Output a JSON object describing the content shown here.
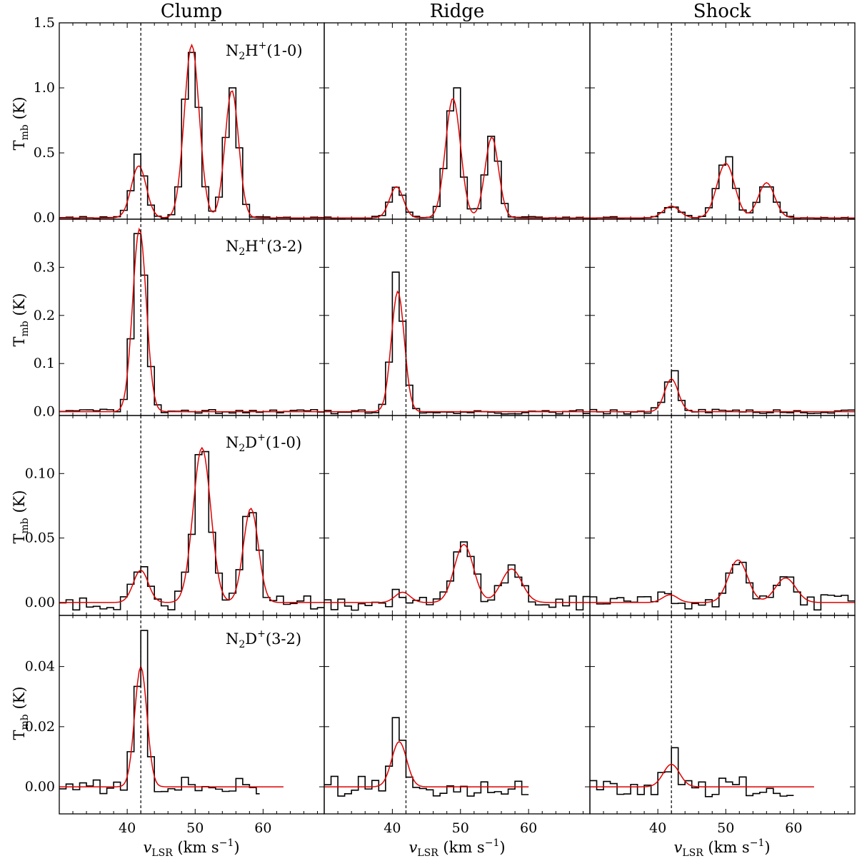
{
  "chart_data": {
    "type": "line",
    "columns": [
      "Clump",
      "Ridge",
      "Shock"
    ],
    "row_labels": [
      "N2H+(1-0)",
      "N2H+(3-2)",
      "N2D+(1-0)",
      "N2D+(3-2)"
    ],
    "xlabel": "vLSR (km s−1)",
    "ylabel": "Tmb (K)",
    "xlim": [
      30,
      69
    ],
    "x_ticks": [
      40,
      50,
      60
    ],
    "vlsr_lines": [
      42.0,
      42.0,
      42.0
    ],
    "rows": [
      {
        "ylim": [
          -0.01,
          1.5
        ],
        "y_ticks": [
          0.0,
          0.5,
          1.0,
          1.5
        ],
        "y_tick_labels": [
          "0.0",
          "0.5",
          "1.0",
          "1.5"
        ],
        "panels": [
          {
            "components": [
              [
                41.7,
                0.4,
                1.1
              ],
              [
                49.5,
                1.33,
                1.1
              ],
              [
                55.4,
                0.98,
                1.0
              ]
            ],
            "noise": 0.01,
            "x_end": 69,
            "spike": [
              41.9,
              0.49
            ]
          },
          {
            "components": [
              [
                40.6,
                0.24,
                1.0
              ],
              [
                48.9,
                0.92,
                1.1
              ],
              [
                54.6,
                0.62,
                1.0
              ]
            ],
            "noise": 0.01,
            "x_end": 69,
            "spike": [
              49.4,
              1.0
            ]
          },
          {
            "components": [
              [
                42.0,
                0.09,
                1.2
              ],
              [
                50.0,
                0.42,
                1.3
              ],
              [
                56.0,
                0.27,
                1.2
              ]
            ],
            "noise": 0.01,
            "x_end": 69,
            "spike": [
              50.4,
              0.47
            ]
          }
        ]
      },
      {
        "ylim": [
          -0.008,
          0.4
        ],
        "y_ticks": [
          0.0,
          0.1,
          0.2,
          0.3
        ],
        "y_tick_labels": [
          "0.0",
          "0.1",
          "0.2",
          "0.3"
        ],
        "panels": [
          {
            "components": [
              [
                41.8,
                0.38,
                1.0
              ]
            ],
            "noise": 0.005,
            "x_end": 69,
            "spike": [
              41.6,
              0.37
            ]
          },
          {
            "components": [
              [
                40.8,
                0.25,
                0.95
              ]
            ],
            "noise": 0.005,
            "x_end": 69,
            "spike": [
              40.8,
              0.29
            ]
          },
          {
            "components": [
              [
                42.0,
                0.068,
                1.0
              ]
            ],
            "noise": 0.005,
            "x_end": 69,
            "spike": [
              42.2,
              0.085
            ]
          }
        ]
      },
      {
        "ylim": [
          -0.01,
          0.145
        ],
        "y_ticks": [
          0.0,
          0.05,
          0.1
        ],
        "y_tick_labels": [
          "0.00",
          "0.05",
          "0.10"
        ],
        "panels": [
          {
            "components": [
              [
                42.0,
                0.025,
                1.1
              ],
              [
                51.0,
                0.12,
                1.3
              ],
              [
                58.2,
                0.073,
                1.1
              ]
            ],
            "noise": 0.006,
            "x_end": 69,
            "spike": [
              51.5,
              0.117
            ]
          },
          {
            "components": [
              [
                41.5,
                0.008,
                1.1
              ],
              [
                50.5,
                0.045,
                1.4
              ],
              [
                57.5,
                0.026,
                1.5
              ]
            ],
            "noise": 0.006,
            "x_end": 69,
            "spike": [
              50.5,
              0.047
            ]
          },
          {
            "components": [
              [
                41.8,
                0.006,
                1.1
              ],
              [
                51.8,
                0.033,
                1.4
              ],
              [
                58.8,
                0.019,
                1.5
              ]
            ],
            "noise": 0.006,
            "x_end": 69,
            "spike": [
              52.0,
              0.036
            ]
          }
        ]
      },
      {
        "ylim": [
          -0.009,
          0.057
        ],
        "y_ticks": [
          0.0,
          0.02,
          0.04
        ],
        "y_tick_labels": [
          "0.00",
          "0.02",
          "0.04"
        ],
        "panels": [
          {
            "components": [
              [
                42.0,
                0.04,
                0.9
              ]
            ],
            "noise": 0.0035,
            "x_end": 63,
            "hist_end": 59.5,
            "spike": [
              42.2,
              0.052
            ]
          },
          {
            "components": [
              [
                41.0,
                0.015,
                1.1
              ]
            ],
            "noise": 0.0035,
            "x_end": 60,
            "hist_end": 60,
            "spike": [
              40.8,
              0.023
            ]
          },
          {
            "components": [
              [
                42.0,
                0.0075,
                1.2
              ]
            ],
            "noise": 0.0035,
            "x_end": 63,
            "hist_end": 60,
            "spike": [
              42.6,
              0.013
            ]
          }
        ]
      }
    ]
  },
  "labels": {
    "col_clump": "Clump",
    "col_ridge": "Ridge",
    "col_shock": "Shock",
    "row1_line": "N2H+(1-0)",
    "row2_line": "N2H+(3-2)",
    "row3_line": "N2D+(1-0)",
    "row4_line": "N2D+(3-2)",
    "ylabel": "Tmb (K)",
    "xlabel": "vLSR (km s−1)"
  },
  "colors": {
    "observed": "#000000",
    "fit": "#e00000",
    "vlsr_line": "#000000"
  }
}
